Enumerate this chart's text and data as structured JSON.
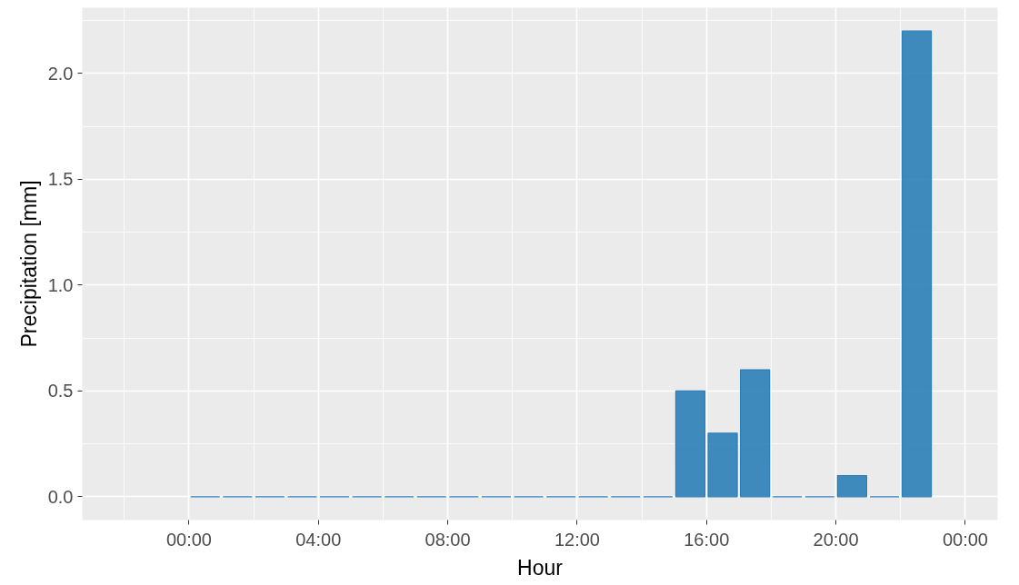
{
  "chart_data": {
    "type": "bar",
    "xlabel": "Hour",
    "ylabel": "Precipitation [mm]",
    "x": [
      0.5,
      1.5,
      2.5,
      3.5,
      4.5,
      5.5,
      6.5,
      7.5,
      8.5,
      9.5,
      10.5,
      11.5,
      12.5,
      13.5,
      14.5,
      15.5,
      16.5,
      17.5,
      18.5,
      19.5,
      20.5,
      21.5,
      22.5
    ],
    "series": [
      {
        "color": "#2c7fb8",
        "values": [
          0,
          0,
          0,
          0,
          0,
          0,
          0,
          0,
          0,
          0,
          0,
          0,
          0,
          0,
          0,
          0.5,
          0.3,
          0.6,
          0,
          0,
          0.1,
          0,
          2.2
        ]
      }
    ],
    "xlim": [
      -3.3,
      25.0
    ],
    "xticks": [
      {
        "value": 0,
        "label": "00:00"
      },
      {
        "value": 4,
        "label": "04:00"
      },
      {
        "value": 8,
        "label": "08:00"
      },
      {
        "value": 12,
        "label": "12:00"
      },
      {
        "value": 16,
        "label": "16:00"
      },
      {
        "value": 20,
        "label": "20:00"
      },
      {
        "value": 24,
        "label": "00:00"
      }
    ],
    "ylim": [
      -0.11,
      2.31
    ],
    "yticks": [
      {
        "value": 0,
        "label": "0.0"
      },
      {
        "value": 0.5,
        "label": "0.5"
      },
      {
        "value": 1,
        "label": "1.0"
      },
      {
        "value": 1.5,
        "label": "1.5"
      },
      {
        "value": 2,
        "label": "2.0"
      }
    ],
    "grid": true
  }
}
